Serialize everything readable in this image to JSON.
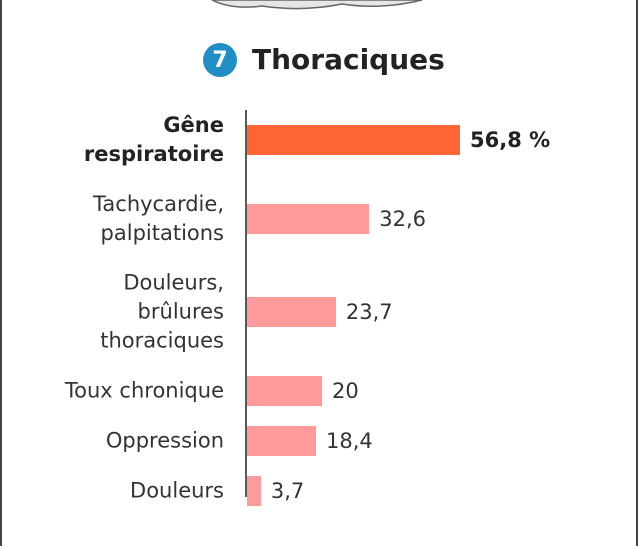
{
  "chart_data": {
    "type": "bar",
    "orientation": "horizontal",
    "section_number": "7",
    "title": "Thoraciques",
    "categories": [
      "Gêne\nrespiratoire",
      "Tachycardie,\npalpitations",
      "Douleurs,\nbrûlures\nthoraciques",
      "Toux chronique",
      "Oppression",
      "Douleurs"
    ],
    "values": [
      56.8,
      32.6,
      23.7,
      20,
      18.4,
      3.7
    ],
    "value_labels": [
      "56,8 %",
      "32,6",
      "23,7",
      "20",
      "18,4",
      "3,7"
    ],
    "colors": [
      "#ff6633",
      "#ff9a9a",
      "#ff9a9a",
      "#ff9a9a",
      "#ff9a9a",
      "#ff9a9a"
    ],
    "highlighted": [
      true,
      false,
      false,
      false,
      false,
      false
    ],
    "xlim": [
      0,
      60
    ]
  }
}
